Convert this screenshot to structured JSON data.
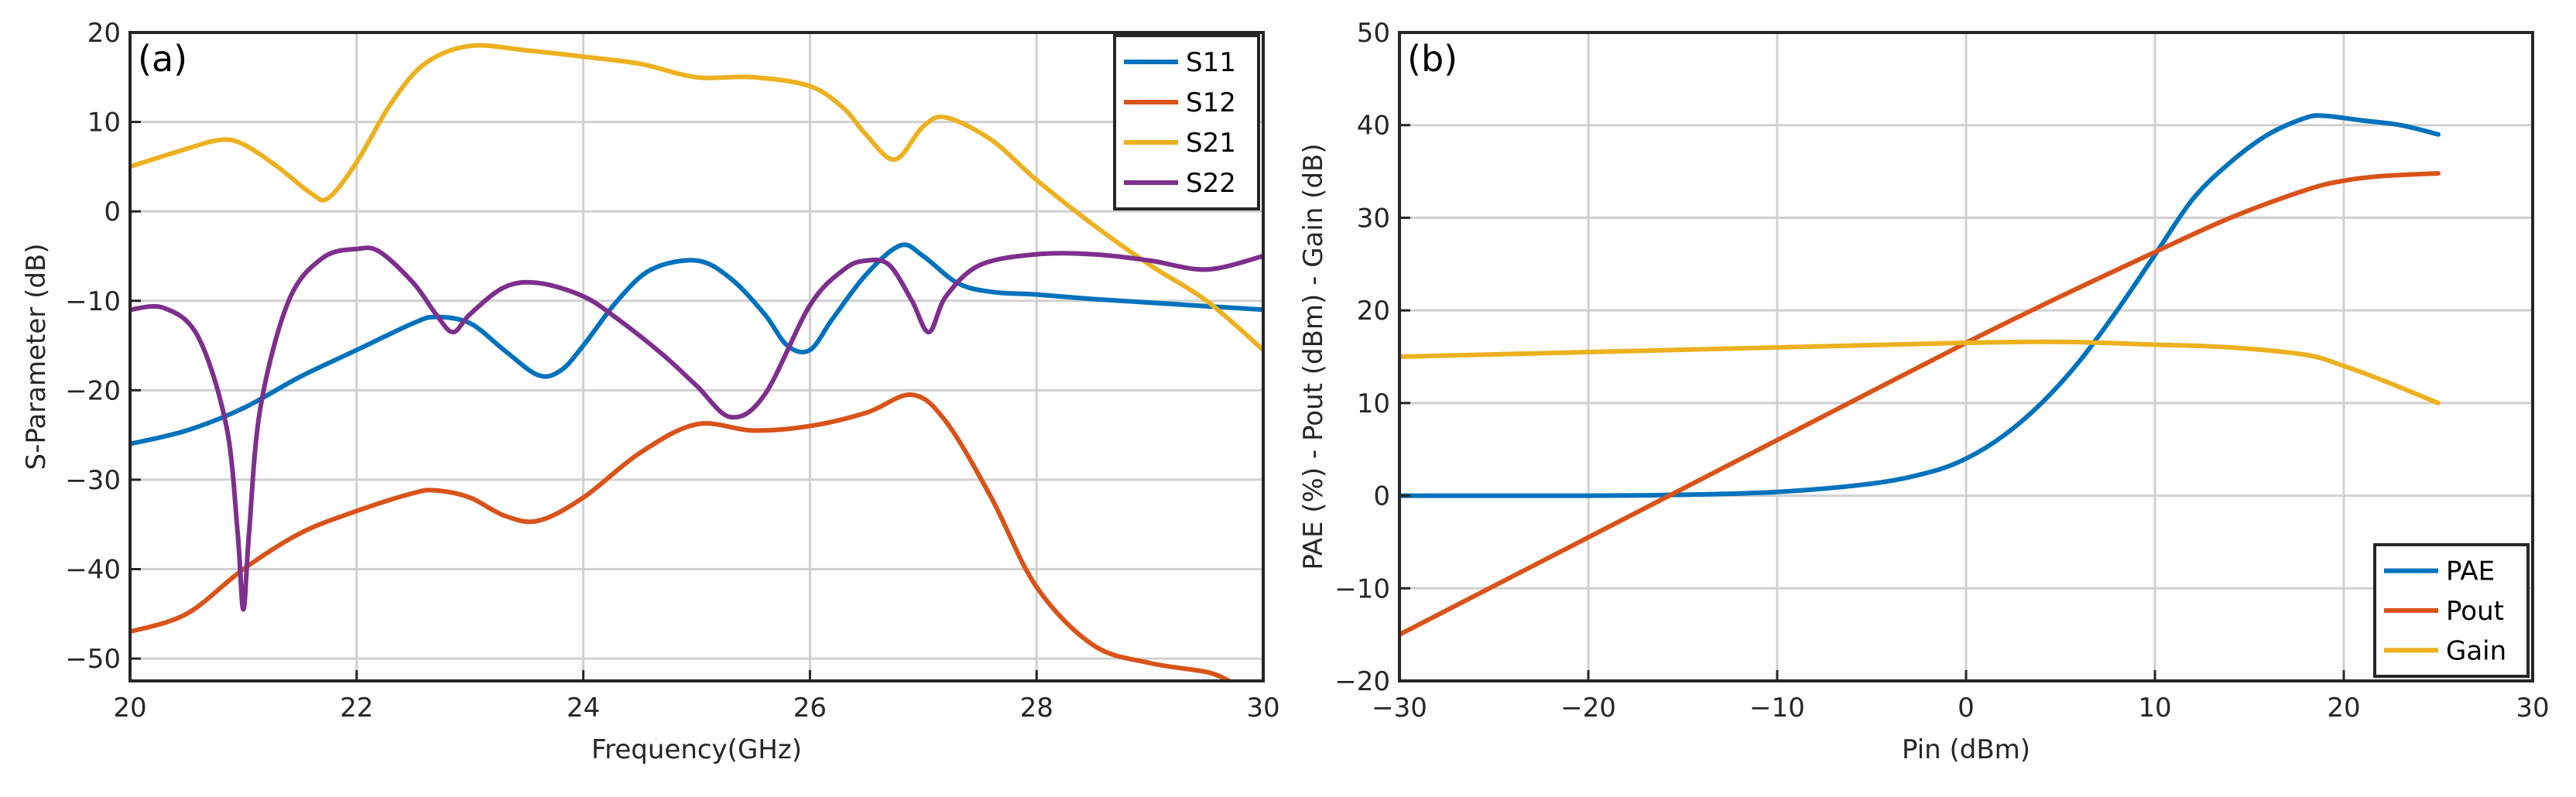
{
  "chart_data": [
    {
      "id": "a",
      "type": "line",
      "panel_label": "(a)",
      "xlabel": "Frequency(GHz)",
      "ylabel": "S-Parameter (dB)",
      "xlim": [
        20,
        30
      ],
      "ylim": [
        -52.5,
        20
      ],
      "xticks": [
        20,
        22,
        24,
        26,
        28,
        30
      ],
      "yticks": [
        20,
        10,
        0,
        -10,
        -20,
        -30,
        -40,
        -50
      ],
      "grid": true,
      "legend_position": "top-right",
      "series": [
        {
          "name": "S11",
          "color": "#0072BD",
          "x": [
            20,
            20.5,
            21,
            21.5,
            22,
            22.5,
            22.7,
            23,
            23.3,
            23.6,
            23.8,
            24,
            24.3,
            24.6,
            25,
            25.3,
            25.6,
            25.8,
            26,
            26.2,
            26.5,
            26.8,
            27,
            27.3,
            27.6,
            28,
            28.5,
            29,
            29.5,
            30
          ],
          "y": [
            -26,
            -24.5,
            -22,
            -18.5,
            -15.5,
            -12.5,
            -11.8,
            -12.5,
            -15.5,
            -18.3,
            -17.8,
            -15,
            -10,
            -6.5,
            -5.5,
            -7.5,
            -11.5,
            -15,
            -15.5,
            -12,
            -7,
            -3.8,
            -5,
            -8,
            -9,
            -9.3,
            -9.8,
            -10.2,
            -10.6,
            -11
          ]
        },
        {
          "name": "S12",
          "color": "#D95319",
          "x": [
            20,
            20.5,
            21,
            21.5,
            22,
            22.5,
            22.7,
            23,
            23.3,
            23.6,
            24,
            24.5,
            25,
            25.5,
            26,
            26.5,
            26.9,
            27.2,
            27.6,
            28,
            28.5,
            29,
            29.5,
            29.7
          ],
          "y": [
            -47,
            -45,
            -40,
            -36,
            -33.5,
            -31.5,
            -31.2,
            -32,
            -34,
            -34.6,
            -32,
            -27,
            -23.8,
            -24.5,
            -24,
            -22.5,
            -20.5,
            -23.5,
            -32,
            -42,
            -48.5,
            -50.5,
            -51.5,
            -52.5
          ]
        },
        {
          "name": "S21",
          "color": "#EDB120",
          "x": [
            20,
            20.5,
            20.8,
            21,
            21.3,
            21.6,
            21.75,
            22,
            22.3,
            22.6,
            23,
            23.5,
            24,
            24.5,
            25,
            25.5,
            26,
            26.3,
            26.5,
            26.75,
            27,
            27.2,
            27.6,
            28,
            28.5,
            29,
            29.5,
            30
          ],
          "y": [
            5,
            7,
            8,
            7.5,
            5,
            2,
            1.5,
            5.5,
            12,
            16.5,
            18.5,
            18,
            17.3,
            16.5,
            15,
            15,
            14,
            11.5,
            8.5,
            5.8,
            9.5,
            10.5,
            8,
            3.5,
            -1.5,
            -6,
            -10,
            -15.5
          ]
        },
        {
          "name": "S22",
          "color": "#7E2F8E",
          "x": [
            20,
            20.3,
            20.6,
            20.85,
            20.95,
            21,
            21.05,
            21.15,
            21.4,
            21.7,
            22,
            22.2,
            22.5,
            22.7,
            22.85,
            23,
            23.3,
            23.6,
            24,
            24.3,
            24.7,
            25,
            25.3,
            25.6,
            26,
            26.3,
            26.5,
            26.7,
            26.9,
            27.05,
            27.2,
            27.5,
            28,
            28.5,
            29,
            29.5,
            30
          ],
          "y": [
            -11,
            -10.8,
            -14,
            -24,
            -36,
            -44.5,
            -36,
            -22,
            -10,
            -5.2,
            -4.2,
            -4.5,
            -8,
            -11.5,
            -13.5,
            -11.5,
            -8.5,
            -8,
            -9.5,
            -12,
            -16,
            -19.5,
            -23,
            -20.5,
            -10.5,
            -6.5,
            -5.5,
            -6,
            -10,
            -13.5,
            -9.5,
            -6,
            -4.8,
            -4.8,
            -5.5,
            -6.5,
            -5
          ]
        }
      ]
    },
    {
      "id": "b",
      "type": "line",
      "panel_label": "(b)",
      "xlabel": "Pin (dBm)",
      "ylabel": "PAE (%)  - Pout (dBm) - Gain (dB)",
      "xlim": [
        -30,
        30
      ],
      "ylim": [
        -20,
        50
      ],
      "xticks": [
        -30,
        -20,
        -10,
        0,
        10,
        20,
        30
      ],
      "yticks": [
        50,
        40,
        30,
        20,
        10,
        0,
        -10,
        -20
      ],
      "grid": true,
      "legend_position": "bottom-right",
      "series": [
        {
          "name": "PAE",
          "color": "#0072BD",
          "x": [
            -30,
            -20,
            -15,
            -10,
            -5,
            -2,
            0,
            2,
            4,
            6,
            8,
            10,
            12,
            14,
            16,
            18,
            19,
            21,
            23,
            25
          ],
          "y": [
            0,
            0,
            0.1,
            0.4,
            1.3,
            2.5,
            4,
            6.5,
            10,
            14.5,
            20,
            26,
            32,
            36,
            39,
            40.8,
            41,
            40.5,
            40,
            39
          ]
        },
        {
          "name": "Pout",
          "color": "#D95319",
          "x": [
            -30,
            -20,
            -10,
            0,
            5,
            10,
            14,
            18,
            20,
            22,
            25
          ],
          "y": [
            -15,
            -4.5,
            6,
            16.5,
            21.5,
            26.3,
            30,
            33,
            34,
            34.5,
            34.8
          ]
        },
        {
          "name": "Gain",
          "color": "#EDB120",
          "x": [
            -30,
            -20,
            -10,
            0,
            5,
            10,
            14,
            18,
            20,
            22,
            25
          ],
          "y": [
            15,
            15.5,
            16,
            16.5,
            16.6,
            16.3,
            16,
            15.2,
            14,
            12.5,
            10
          ]
        }
      ]
    }
  ]
}
